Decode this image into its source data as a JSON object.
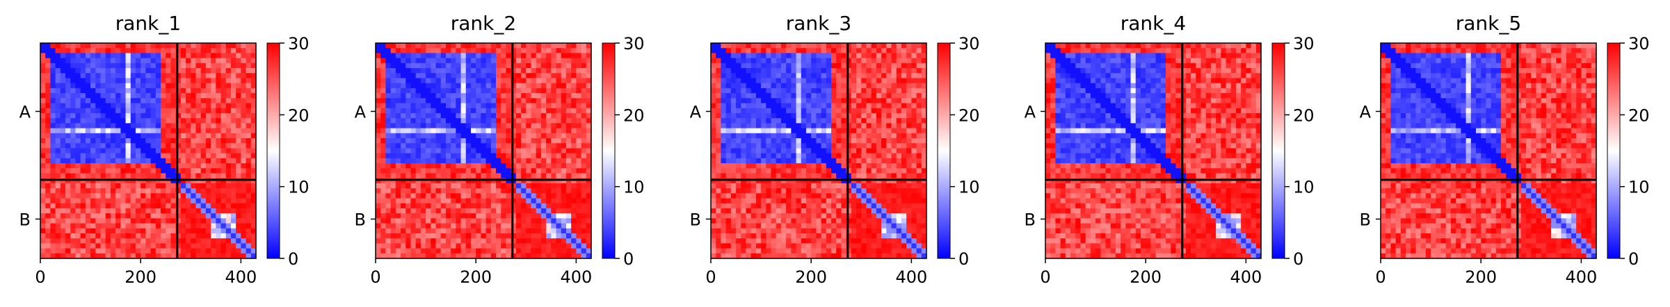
{
  "figure": {
    "colors": {
      "low": "#0000ff",
      "mid": "#ffffff",
      "high": "#ff0000",
      "chain_line": "#000000"
    },
    "colorbar_ticks": [
      "0",
      "10",
      "20",
      "30"
    ]
  },
  "chart_data": [
    {
      "type": "heatmap",
      "title": "rank_1",
      "xlabel": "",
      "ylabel": "",
      "xlim": [
        0,
        430
      ],
      "ylim": [
        0,
        430
      ],
      "x_ticks": [
        0,
        200,
        400
      ],
      "y_tick_labels": [
        "A",
        "B"
      ],
      "chain_boundaries": [
        0,
        273,
        430
      ],
      "colorbar": {
        "range": [
          0,
          30
        ],
        "ticks": [
          0,
          10,
          20,
          30
        ]
      },
      "blocks": [
        {
          "chain_x": "A",
          "chain_y": "A",
          "value_range": [
            0,
            30
          ],
          "typical_value": 3
        },
        {
          "chain_x": "A",
          "chain_y": "B",
          "value_range": [
            18,
            30
          ],
          "typical_value": 29
        },
        {
          "chain_x": "B",
          "chain_y": "A",
          "value_range": [
            18,
            30
          ],
          "typical_value": 29
        },
        {
          "chain_x": "B",
          "chain_y": "B",
          "value_range": [
            0,
            30
          ],
          "typical_value": 28
        }
      ]
    },
    {
      "type": "heatmap",
      "title": "rank_2",
      "xlabel": "",
      "ylabel": "",
      "xlim": [
        0,
        430
      ],
      "ylim": [
        0,
        430
      ],
      "x_ticks": [
        0,
        200,
        400
      ],
      "y_tick_labels": [
        "A",
        "B"
      ],
      "chain_boundaries": [
        0,
        273,
        430
      ],
      "colorbar": {
        "range": [
          0,
          30
        ],
        "ticks": [
          0,
          10,
          20,
          30
        ]
      },
      "blocks": [
        {
          "chain_x": "A",
          "chain_y": "A",
          "value_range": [
            0,
            30
          ],
          "typical_value": 4
        },
        {
          "chain_x": "A",
          "chain_y": "B",
          "value_range": [
            18,
            30
          ],
          "typical_value": 29
        },
        {
          "chain_x": "B",
          "chain_y": "A",
          "value_range": [
            18,
            30
          ],
          "typical_value": 29
        },
        {
          "chain_x": "B",
          "chain_y": "B",
          "value_range": [
            0,
            30
          ],
          "typical_value": 28
        }
      ]
    },
    {
      "type": "heatmap",
      "title": "rank_3",
      "xlabel": "",
      "ylabel": "",
      "xlim": [
        0,
        430
      ],
      "ylim": [
        0,
        430
      ],
      "x_ticks": [
        0,
        200,
        400
      ],
      "y_tick_labels": [
        "A",
        "B"
      ],
      "chain_boundaries": [
        0,
        273,
        430
      ],
      "colorbar": {
        "range": [
          0,
          30
        ],
        "ticks": [
          0,
          10,
          20,
          30
        ]
      },
      "blocks": [
        {
          "chain_x": "A",
          "chain_y": "A",
          "value_range": [
            0,
            30
          ],
          "typical_value": 3
        },
        {
          "chain_x": "A",
          "chain_y": "B",
          "value_range": [
            18,
            30
          ],
          "typical_value": 29
        },
        {
          "chain_x": "B",
          "chain_y": "A",
          "value_range": [
            18,
            30
          ],
          "typical_value": 29
        },
        {
          "chain_x": "B",
          "chain_y": "B",
          "value_range": [
            0,
            30
          ],
          "typical_value": 28
        }
      ]
    },
    {
      "type": "heatmap",
      "title": "rank_4",
      "xlabel": "",
      "ylabel": "",
      "xlim": [
        0,
        430
      ],
      "ylim": [
        0,
        430
      ],
      "x_ticks": [
        0,
        200,
        400
      ],
      "y_tick_labels": [
        "A",
        "B"
      ],
      "chain_boundaries": [
        0,
        273,
        430
      ],
      "colorbar": {
        "range": [
          0,
          30
        ],
        "ticks": [
          0,
          10,
          20,
          30
        ]
      },
      "blocks": [
        {
          "chain_x": "A",
          "chain_y": "A",
          "value_range": [
            0,
            30
          ],
          "typical_value": 3
        },
        {
          "chain_x": "A",
          "chain_y": "B",
          "value_range": [
            18,
            30
          ],
          "typical_value": 29
        },
        {
          "chain_x": "B",
          "chain_y": "A",
          "value_range": [
            18,
            30
          ],
          "typical_value": 29
        },
        {
          "chain_x": "B",
          "chain_y": "B",
          "value_range": [
            0,
            30
          ],
          "typical_value": 28
        }
      ]
    },
    {
      "type": "heatmap",
      "title": "rank_5",
      "xlabel": "",
      "ylabel": "",
      "xlim": [
        0,
        430
      ],
      "ylim": [
        0,
        430
      ],
      "x_ticks": [
        0,
        200,
        400
      ],
      "y_tick_labels": [
        "A",
        "B"
      ],
      "chain_boundaries": [
        0,
        273,
        430
      ],
      "colorbar": {
        "range": [
          0,
          30
        ],
        "ticks": [
          0,
          10,
          20,
          30
        ]
      },
      "blocks": [
        {
          "chain_x": "A",
          "chain_y": "A",
          "value_range": [
            0,
            30
          ],
          "typical_value": 3
        },
        {
          "chain_x": "A",
          "chain_y": "B",
          "value_range": [
            18,
            30
          ],
          "typical_value": 29
        },
        {
          "chain_x": "B",
          "chain_y": "A",
          "value_range": [
            18,
            30
          ],
          "typical_value": 29
        },
        {
          "chain_x": "B",
          "chain_y": "B",
          "value_range": [
            0,
            30
          ],
          "typical_value": 28
        }
      ]
    }
  ]
}
